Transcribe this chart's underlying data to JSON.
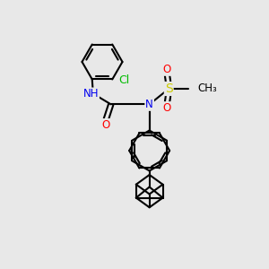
{
  "bg_color": "#e8e8e8",
  "bond_color": "#000000",
  "bond_lw": 1.5,
  "atom_colors": {
    "N": "#0000ee",
    "O": "#ff0000",
    "S": "#cccc00",
    "Cl": "#00bb00",
    "C": "#000000"
  },
  "font_size": 8.5,
  "dpi": 100,
  "fig_w": 3.0,
  "fig_h": 3.0,
  "xlim": [
    0,
    10
  ],
  "ylim": [
    0,
    10
  ]
}
